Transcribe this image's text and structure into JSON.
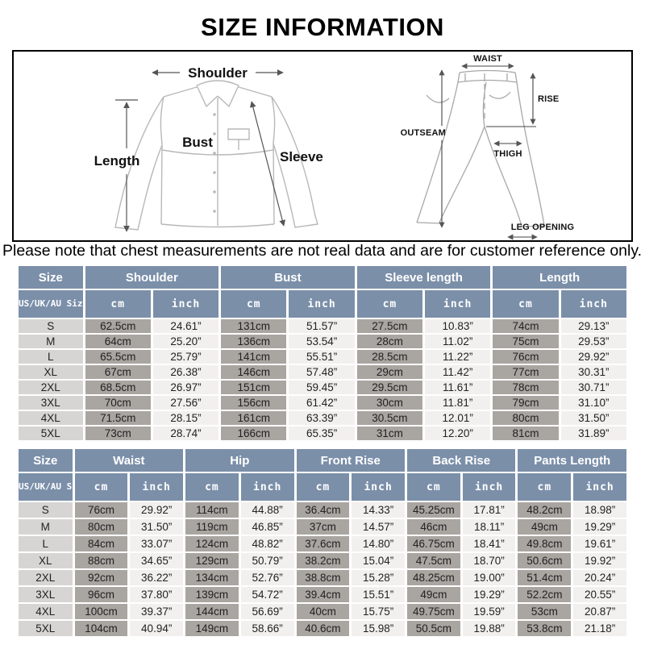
{
  "page": {
    "title": "SIZE INFORMATION",
    "note": "Please note that chest measurements are not real data and are for customer reference only."
  },
  "colors": {
    "header_blue": "#7b8fa9",
    "cm_cell_gray": "#a9a5a1",
    "inch_cell_light": "#f2f0ee",
    "size_col_gray": "#d6d5d3"
  },
  "diagrams": {
    "shirt": {
      "shoulder": "Shoulder",
      "length": "Length",
      "bust": "Bust",
      "sleeve": "Sleeve"
    },
    "pants": {
      "waist": "WAIST",
      "rise": "RISE",
      "outseam": "OUTSEAM",
      "thigh": "THIGH",
      "leg_opening": "LEG OPENING"
    }
  },
  "tables": [
    {
      "name": "tops",
      "size_header": "Size",
      "sub_size_header": "US/UK/AU Size",
      "unit_headers": [
        "cm",
        "inch"
      ],
      "groups": [
        "Shoulder",
        "Bust",
        "Sleeve length",
        "Length"
      ],
      "rows": [
        {
          "size": "S",
          "values": [
            "62.5cm",
            "24.61”",
            "131cm",
            "51.57”",
            "27.5cm",
            "10.83”",
            "74cm",
            "29.13”"
          ]
        },
        {
          "size": "M",
          "values": [
            "64cm",
            "25.20”",
            "136cm",
            "53.54”",
            "28cm",
            "11.02”",
            "75cm",
            "29.53”"
          ]
        },
        {
          "size": "L",
          "values": [
            "65.5cm",
            "25.79”",
            "141cm",
            "55.51”",
            "28.5cm",
            "11.22”",
            "76cm",
            "29.92”"
          ]
        },
        {
          "size": "XL",
          "values": [
            "67cm",
            "26.38”",
            "146cm",
            "57.48”",
            "29cm",
            "11.42”",
            "77cm",
            "30.31”"
          ]
        },
        {
          "size": "2XL",
          "values": [
            "68.5cm",
            "26.97”",
            "151cm",
            "59.45”",
            "29.5cm",
            "11.61”",
            "78cm",
            "30.71”"
          ]
        },
        {
          "size": "3XL",
          "values": [
            "70cm",
            "27.56”",
            "156cm",
            "61.42”",
            "30cm",
            "11.81”",
            "79cm",
            "31.10”"
          ]
        },
        {
          "size": "4XL",
          "values": [
            "71.5cm",
            "28.15”",
            "161cm",
            "63.39”",
            "30.5cm",
            "12.01”",
            "80cm",
            "31.50”"
          ]
        },
        {
          "size": "5XL",
          "values": [
            "73cm",
            "28.74”",
            "166cm",
            "65.35”",
            "31cm",
            "12.20”",
            "81cm",
            "31.89”"
          ]
        }
      ]
    },
    {
      "name": "bottoms",
      "size_header": "Size",
      "sub_size_header": "US/UK/AU Size",
      "unit_headers": [
        "cm",
        "inch"
      ],
      "groups": [
        "Waist",
        "Hip",
        "Front Rise",
        "Back Rise",
        "Pants Length"
      ],
      "rows": [
        {
          "size": "S",
          "values": [
            "76cm",
            "29.92”",
            "114cm",
            "44.88”",
            "36.4cm",
            "14.33”",
            "45.25cm",
            "17.81”",
            "48.2cm",
            "18.98”"
          ]
        },
        {
          "size": "M",
          "values": [
            "80cm",
            "31.50”",
            "119cm",
            "46.85”",
            "37cm",
            "14.57”",
            "46cm",
            "18.11”",
            "49cm",
            "19.29”"
          ]
        },
        {
          "size": "L",
          "values": [
            "84cm",
            "33.07”",
            "124cm",
            "48.82”",
            "37.6cm",
            "14.80”",
            "46.75cm",
            "18.41”",
            "49.8cm",
            "19.61”"
          ]
        },
        {
          "size": "XL",
          "values": [
            "88cm",
            "34.65”",
            "129cm",
            "50.79”",
            "38.2cm",
            "15.04”",
            "47.5cm",
            "18.70”",
            "50.6cm",
            "19.92”"
          ]
        },
        {
          "size": "2XL",
          "values": [
            "92cm",
            "36.22”",
            "134cm",
            "52.76”",
            "38.8cm",
            "15.28”",
            "48.25cm",
            "19.00”",
            "51.4cm",
            "20.24”"
          ]
        },
        {
          "size": "3XL",
          "values": [
            "96cm",
            "37.80”",
            "139cm",
            "54.72”",
            "39.4cm",
            "15.51”",
            "49cm",
            "19.29”",
            "52.2cm",
            "20.55”"
          ]
        },
        {
          "size": "4XL",
          "values": [
            "100cm",
            "39.37”",
            "144cm",
            "56.69”",
            "40cm",
            "15.75”",
            "49.75cm",
            "19.59”",
            "53cm",
            "20.87”"
          ]
        },
        {
          "size": "5XL",
          "values": [
            "104cm",
            "40.94”",
            "149cm",
            "58.66”",
            "40.6cm",
            "15.98”",
            "50.5cm",
            "19.88”",
            "53.8cm",
            "21.18”"
          ]
        }
      ]
    }
  ]
}
